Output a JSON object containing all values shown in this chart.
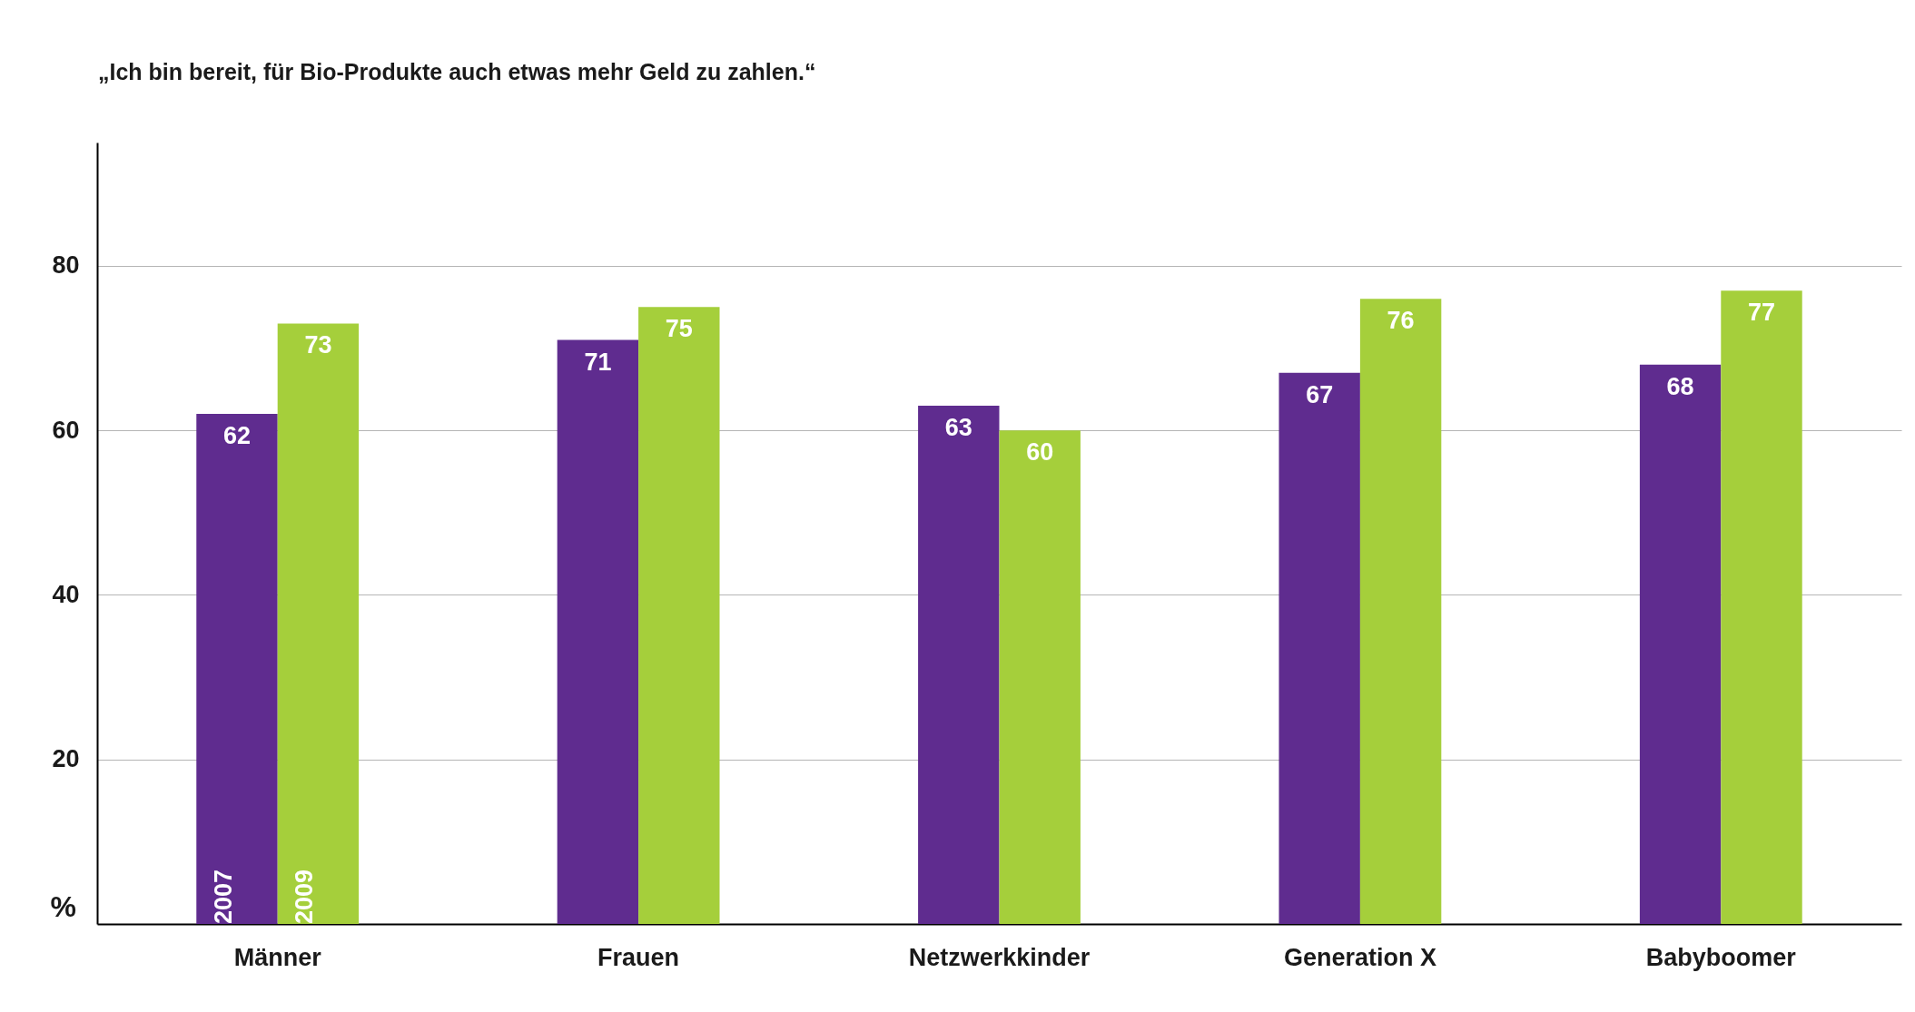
{
  "chart_data": {
    "type": "bar",
    "title": "„Ich bin bereit, für Bio-Produkte auch etwas mehr Geld zu zahlen.“",
    "ylabel": "%",
    "categories": [
      "Männer",
      "Frauen",
      "Netzwerkkinder",
      "Generation X",
      "Babyboomer"
    ],
    "series": [
      {
        "name": "2007",
        "color": "#5f2c8f",
        "values": [
          62,
          71,
          63,
          67,
          68
        ]
      },
      {
        "name": "2009",
        "color": "#a5cf3b",
        "values": [
          73,
          75,
          60,
          76,
          77
        ]
      }
    ],
    "ylim": [
      0,
      95
    ],
    "yticks": [
      20,
      40,
      60,
      80
    ],
    "grid": "y",
    "data_labels": true
  }
}
